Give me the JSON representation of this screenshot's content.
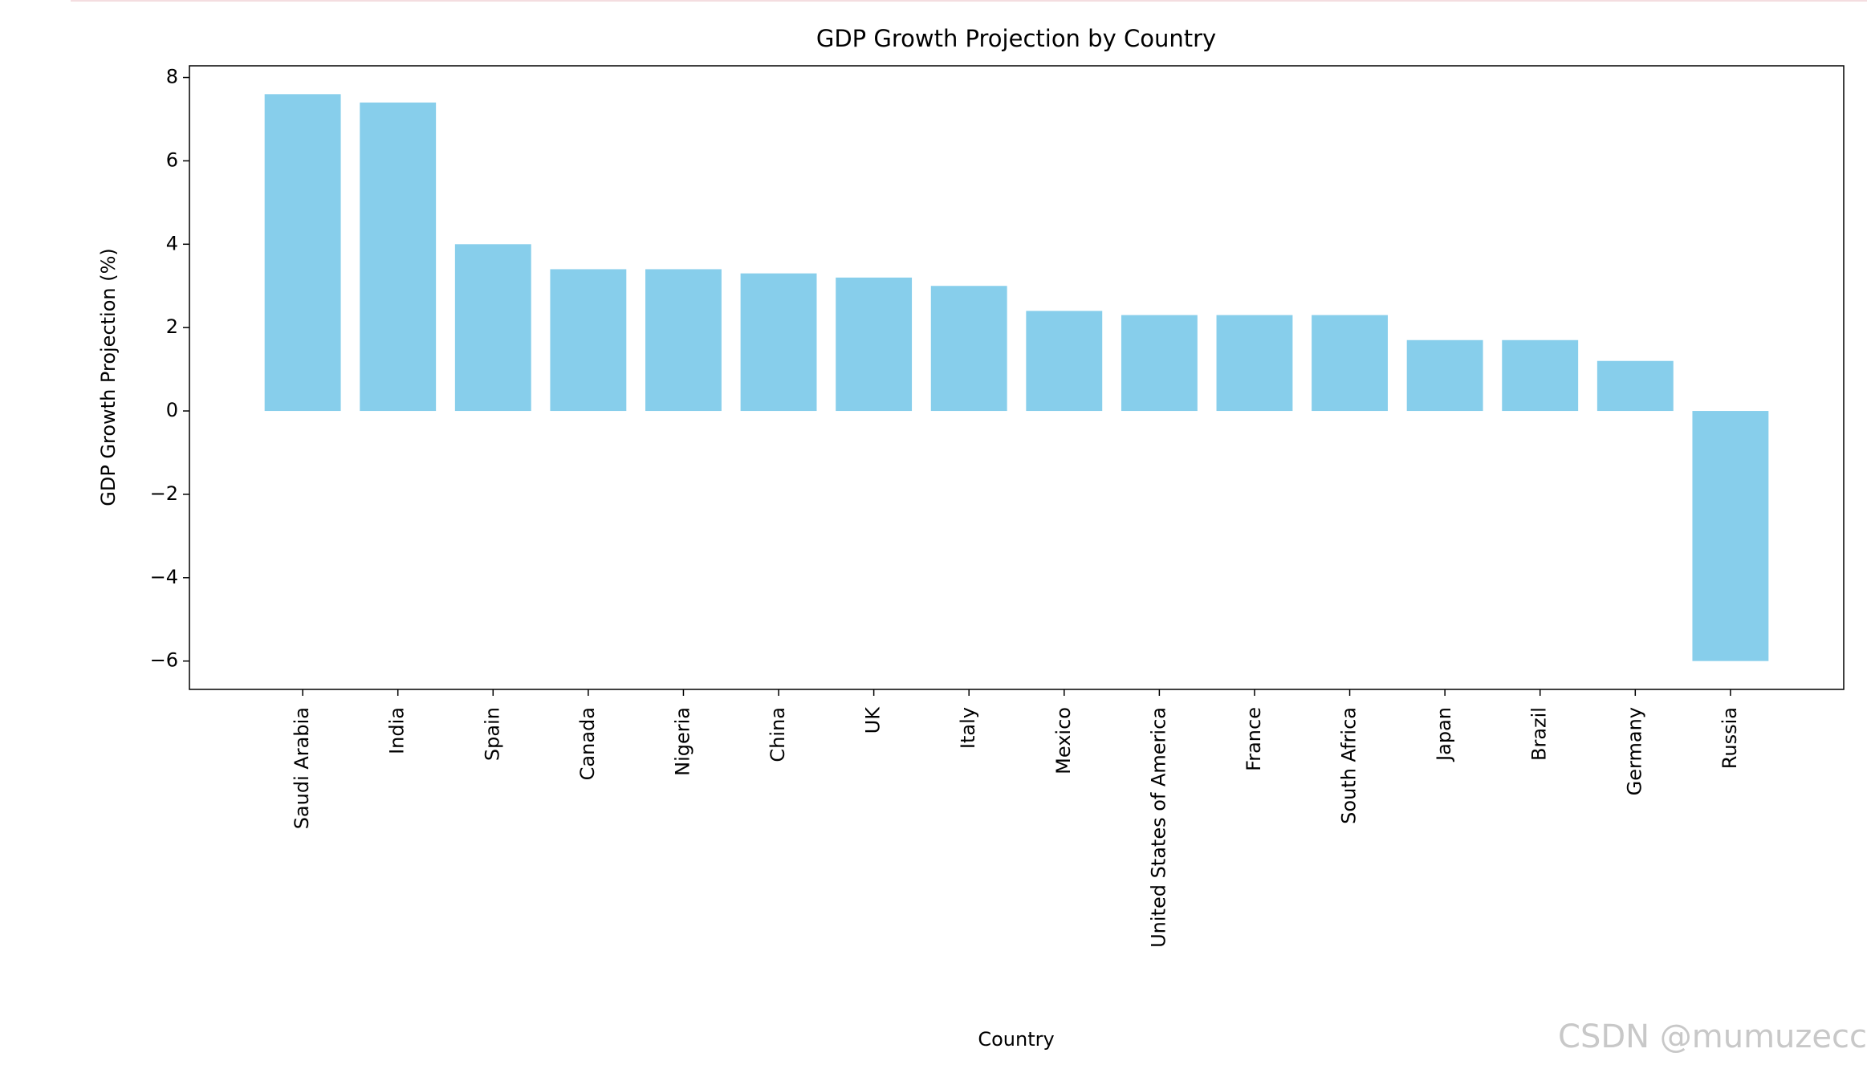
{
  "chart_data": {
    "type": "bar",
    "title": "GDP Growth Projection by Country",
    "xlabel": "Country",
    "ylabel": "GDP Growth Projection (%)",
    "categories": [
      "Saudi Arabia",
      "India",
      "Spain",
      "Canada",
      "Nigeria",
      "China",
      "UK",
      "Italy",
      "Mexico",
      "United States of America",
      "France",
      "South Africa",
      "Japan",
      "Brazil",
      "Germany",
      "Russia"
    ],
    "values": [
      7.6,
      7.4,
      4.0,
      3.4,
      3.4,
      3.3,
      3.2,
      3.0,
      2.4,
      2.3,
      2.3,
      2.3,
      1.7,
      1.7,
      1.2,
      -6.0
    ],
    "color": "#87ceeb",
    "ylim": [
      -6.68,
      8.28
    ],
    "yticks": [
      {
        "value": -6,
        "label": "−6"
      },
      {
        "value": -4,
        "label": "−4"
      },
      {
        "value": -2,
        "label": "−2"
      },
      0,
      2,
      4,
      6,
      8
    ],
    "grid": false,
    "watermark": "CSDN @mumuzecc"
  }
}
